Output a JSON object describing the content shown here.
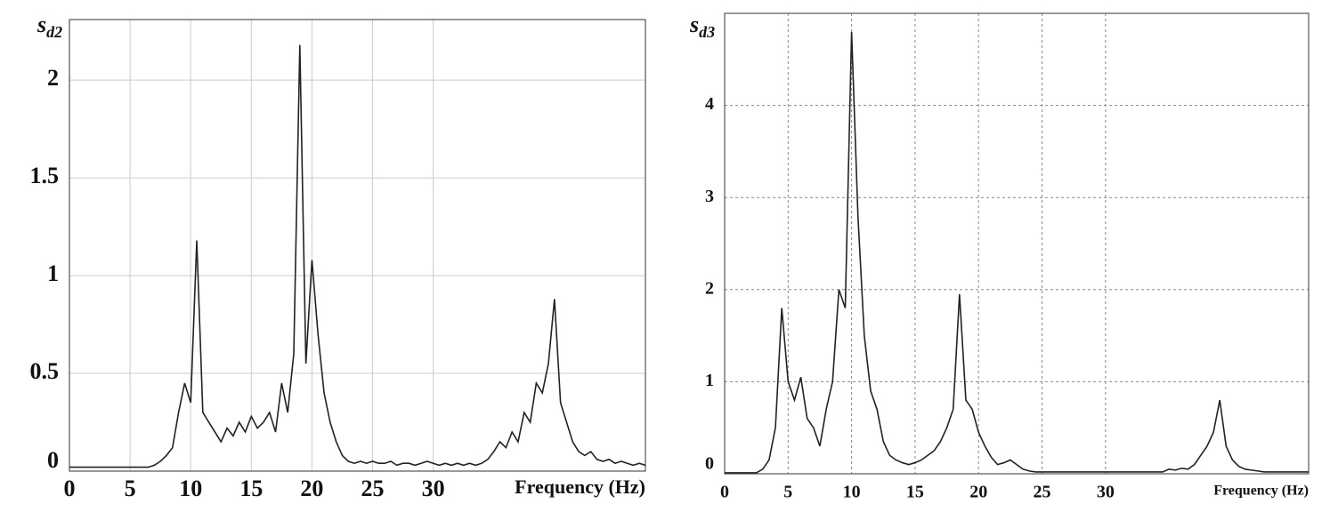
{
  "chart_data": [
    {
      "type": "line",
      "y_label": "s",
      "y_label_sub": "d2",
      "x_label": "Frequency (Hz)",
      "x": [
        0,
        0.5,
        1,
        1.5,
        2,
        2.5,
        3,
        3.5,
        4,
        4.5,
        5,
        5.5,
        6,
        6.5,
        7,
        7.5,
        8,
        8.5,
        9,
        9.5,
        10,
        10.5,
        11,
        11.5,
        12,
        12.5,
        13,
        13.5,
        14,
        14.5,
        15,
        15.5,
        16,
        16.5,
        17,
        17.5,
        18,
        18.5,
        19,
        19.5,
        20,
        20.5,
        21,
        21.5,
        22,
        22.5,
        23,
        23.5,
        24,
        24.5,
        25,
        25.5,
        26,
        26.5,
        27,
        27.5,
        28,
        28.5,
        29,
        29.5,
        30,
        30.5,
        31,
        31.5,
        32,
        32.5,
        33,
        33.5,
        34,
        34.5,
        35,
        35.5,
        36,
        36.5,
        37,
        37.5,
        38,
        38.5,
        39,
        39.5,
        40,
        40.5,
        41,
        41.5,
        42,
        42.5,
        43,
        43.5,
        44,
        44.5,
        45,
        45.5,
        46,
        46.5,
        47,
        47.5
      ],
      "series": [
        {
          "color": "#222222",
          "values": [
            0.02,
            0.02,
            0.02,
            0.02,
            0.02,
            0.02,
            0.02,
            0.02,
            0.02,
            0.02,
            0.02,
            0.02,
            0.02,
            0.02,
            0.03,
            0.05,
            0.08,
            0.12,
            0.3,
            0.45,
            0.35,
            1.18,
            0.3,
            0.25,
            0.2,
            0.15,
            0.22,
            0.18,
            0.25,
            0.2,
            0.28,
            0.22,
            0.25,
            0.3,
            0.2,
            0.45,
            0.3,
            0.6,
            2.18,
            0.55,
            1.08,
            0.7,
            0.4,
            0.25,
            0.15,
            0.08,
            0.05,
            0.04,
            0.05,
            0.04,
            0.05,
            0.04,
            0.04,
            0.05,
            0.03,
            0.04,
            0.04,
            0.03,
            0.04,
            0.05,
            0.04,
            0.03,
            0.04,
            0.03,
            0.04,
            0.03,
            0.04,
            0.03,
            0.04,
            0.06,
            0.1,
            0.15,
            0.12,
            0.2,
            0.15,
            0.3,
            0.25,
            0.45,
            0.4,
            0.55,
            0.88,
            0.35,
            0.25,
            0.15,
            0.1,
            0.08,
            0.1,
            0.06,
            0.05,
            0.06,
            0.04,
            0.05,
            0.04,
            0.03,
            0.04,
            0.03
          ]
        }
      ],
      "xlim": [
        0,
        47.5
      ],
      "xticks": [
        0,
        5,
        10,
        15,
        20,
        25,
        30
      ],
      "ylim": [
        0,
        2.31
      ],
      "yticks": [
        0,
        0.5,
        1,
        1.5,
        2
      ],
      "grid": true,
      "grid_style": "solid"
    },
    {
      "type": "line",
      "y_label": "s",
      "y_label_sub": "d3",
      "x_label": "Frequency (Hz)",
      "x": [
        0,
        0.5,
        1,
        1.5,
        2,
        2.5,
        3,
        3.5,
        4,
        4.5,
        5,
        5.5,
        6,
        6.5,
        7,
        7.5,
        8,
        8.5,
        9,
        9.5,
        10,
        10.5,
        11,
        11.5,
        12,
        12.5,
        13,
        13.5,
        14,
        14.5,
        15,
        15.5,
        16,
        16.5,
        17,
        17.5,
        18,
        18.5,
        19,
        19.5,
        20,
        20.5,
        21,
        21.5,
        22,
        22.5,
        23,
        23.5,
        24,
        24.5,
        25,
        25.5,
        26,
        26.5,
        27,
        27.5,
        28,
        28.5,
        29,
        29.5,
        30,
        30.5,
        31,
        31.5,
        32,
        32.5,
        33,
        33.5,
        34,
        34.5,
        35,
        35.5,
        36,
        36.5,
        37,
        37.5,
        38,
        38.5,
        39,
        39.5,
        40,
        40.5,
        41,
        41.5,
        42,
        42.5,
        43,
        43.5,
        44,
        44.5,
        45,
        45.5,
        46
      ],
      "series": [
        {
          "color": "#222222",
          "values": [
            0.01,
            0.01,
            0.01,
            0.01,
            0.01,
            0.01,
            0.05,
            0.15,
            0.5,
            1.8,
            1.0,
            0.8,
            1.05,
            0.6,
            0.5,
            0.3,
            0.7,
            1.0,
            2.0,
            1.8,
            4.8,
            2.8,
            1.5,
            0.9,
            0.7,
            0.35,
            0.2,
            0.15,
            0.12,
            0.1,
            0.12,
            0.15,
            0.2,
            0.25,
            0.35,
            0.5,
            0.7,
            1.95,
            0.8,
            0.7,
            0.45,
            0.3,
            0.18,
            0.1,
            0.12,
            0.15,
            0.1,
            0.05,
            0.03,
            0.02,
            0.02,
            0.02,
            0.02,
            0.02,
            0.02,
            0.02,
            0.02,
            0.02,
            0.02,
            0.02,
            0.02,
            0.02,
            0.02,
            0.02,
            0.02,
            0.02,
            0.02,
            0.02,
            0.02,
            0.02,
            0.05,
            0.04,
            0.06,
            0.05,
            0.1,
            0.2,
            0.3,
            0.45,
            0.8,
            0.3,
            0.15,
            0.08,
            0.05,
            0.04,
            0.03,
            0.02,
            0.02,
            0.02,
            0.02,
            0.02,
            0.02,
            0.02,
            0.02
          ]
        }
      ],
      "xlim": [
        0,
        46
      ],
      "xticks": [
        0,
        5,
        10,
        15,
        20,
        25,
        30
      ],
      "ylim": [
        0,
        5
      ],
      "yticks": [
        0,
        1,
        2,
        3,
        4
      ],
      "grid": true,
      "grid_style": "dotted"
    }
  ]
}
